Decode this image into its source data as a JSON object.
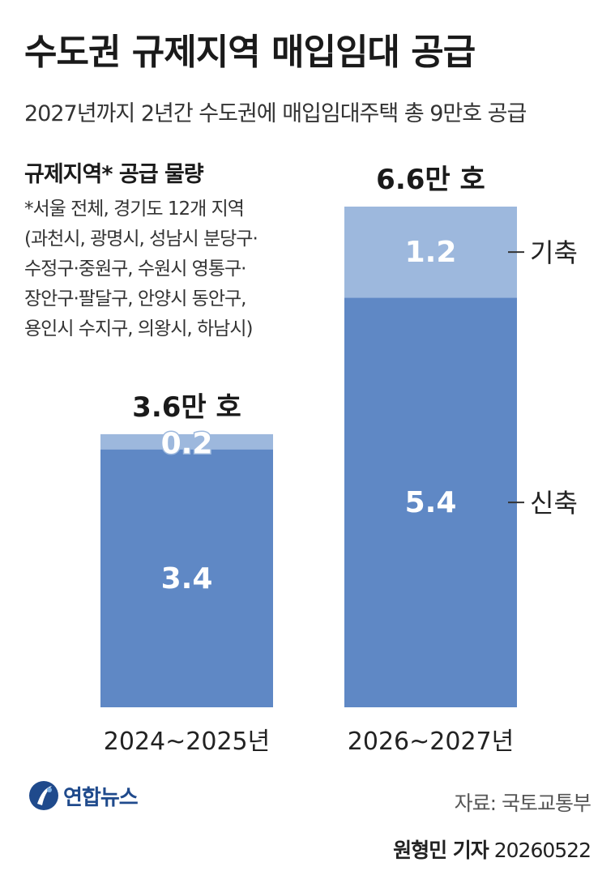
{
  "header": {
    "title": "수도권 규제지역 매입임대 공급",
    "subtitle": "2027년까지 2년간 수도권에 매입임대주택 총 9만호 공급"
  },
  "legend": {
    "title": "규제지역* 공급 물량",
    "footnote_lines": [
      "*서울 전체, 경기도 12개 지역",
      "(과천시, 광명시, 성남시 분당구·",
      "수정구·중원구, 수원시 영통구·",
      "장안구·팔달구, 안양시 동안구,",
      "용인시 수지구, 의왕시, 하남시)"
    ]
  },
  "chart_data": {
    "type": "bar",
    "stacked": true,
    "categories": [
      "2024~2025년",
      "2026~2027년"
    ],
    "totals": [
      3.6,
      6.6
    ],
    "total_labels": [
      "3.6만 호",
      "6.6만 호"
    ],
    "series": [
      {
        "name": "신축",
        "values": [
          3.4,
          5.4
        ],
        "color": "#5f88c5"
      },
      {
        "name": "기축",
        "values": [
          0.2,
          1.2
        ],
        "color": "#9db8dd"
      }
    ],
    "value_labels": [
      [
        "3.4",
        "0.2"
      ],
      [
        "5.4",
        "1.2"
      ]
    ],
    "ylim": [
      0,
      6.6
    ],
    "grid": false
  },
  "footer": {
    "logo_text": "연합뉴스",
    "source": "자료: 국토교통부",
    "reporter": "원형민 기자",
    "date": "20260522"
  },
  "colors": {
    "new_build": "#5f88c5",
    "existing": "#9db8dd",
    "logo": "#1f4a8c"
  }
}
